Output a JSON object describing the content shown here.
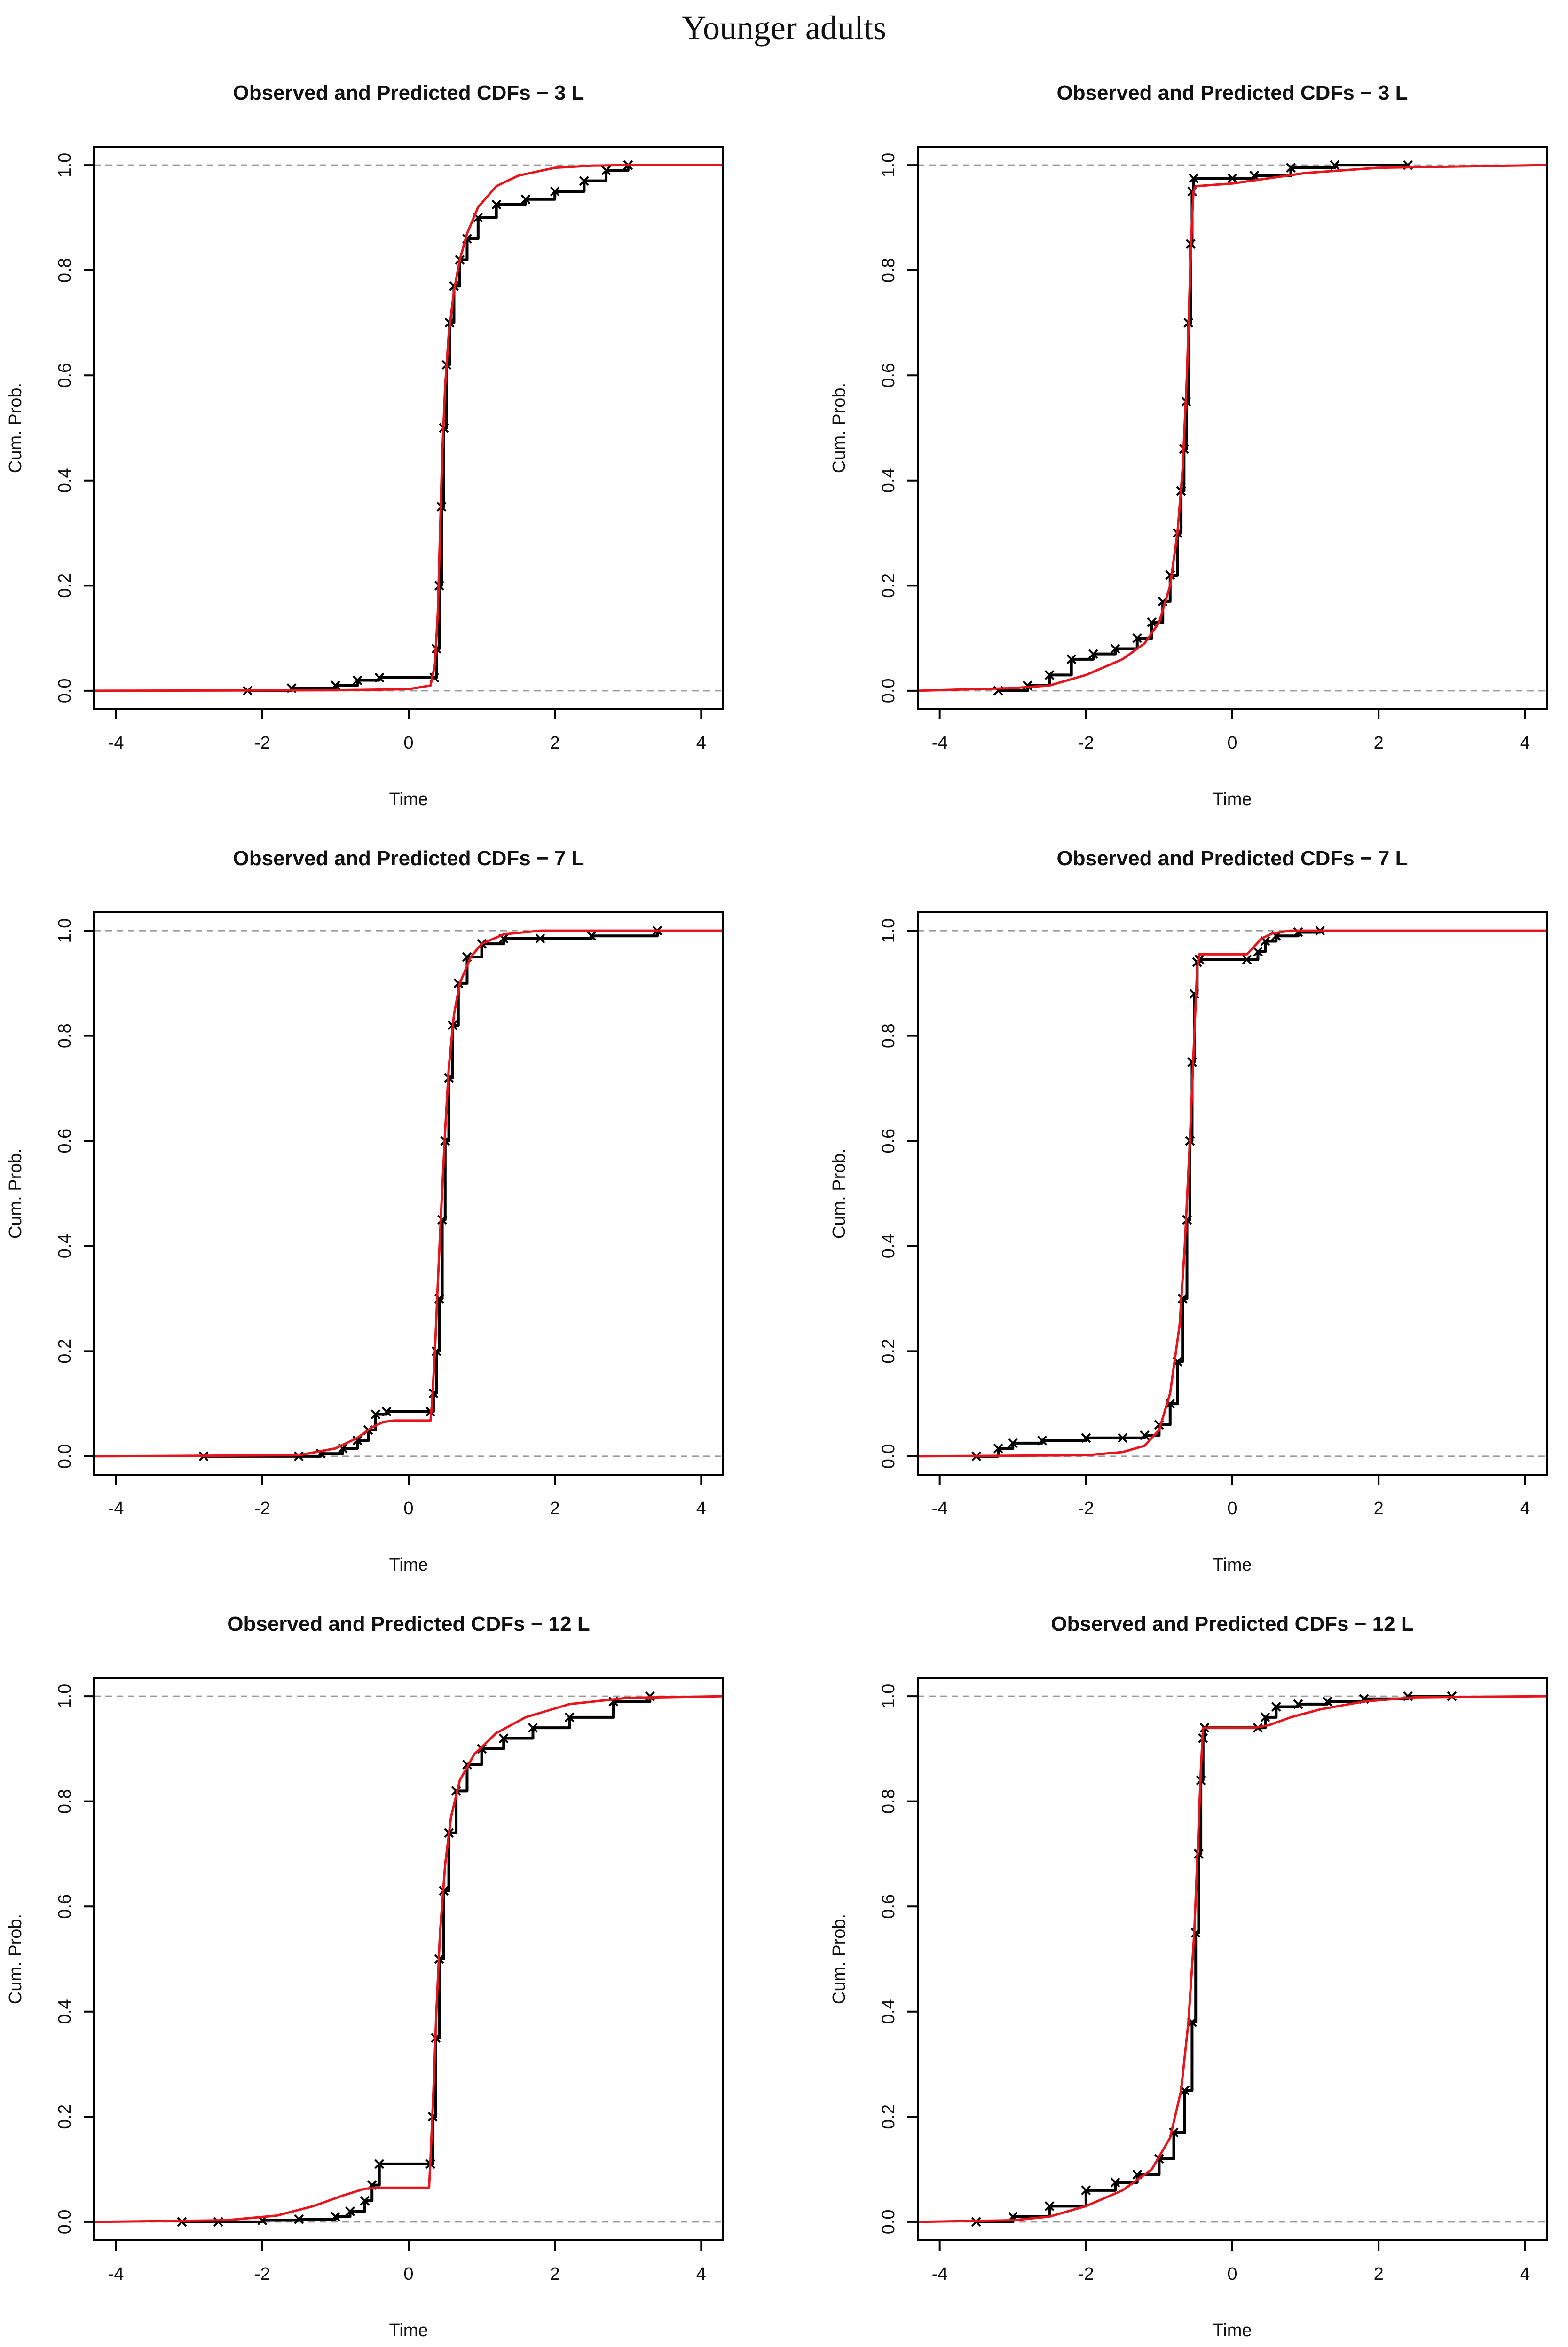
{
  "page_title": "Younger adults",
  "chart_data": [
    {
      "type": "line",
      "title": "Observed and Predicted CDFs − 3  L",
      "xlabel": "Time",
      "ylabel": "Cum. Prob.",
      "xlim": [
        -4.3,
        4.3
      ],
      "ylim": [
        -0.035,
        1.035
      ],
      "xticks": [
        -4,
        -2,
        0,
        2,
        4
      ],
      "yticks": [
        0.0,
        0.2,
        0.4,
        0.6,
        0.8,
        1.0
      ],
      "reference_lines": [
        0.0,
        1.0
      ],
      "series": [
        {
          "name": "Observed",
          "color": "#000000",
          "marker": "x",
          "x": [
            -2.2,
            -1.6,
            -1.0,
            -0.7,
            -0.4,
            0.35,
            0.38,
            0.42,
            0.45,
            0.48,
            0.52,
            0.56,
            0.62,
            0.7,
            0.8,
            0.95,
            1.2,
            1.6,
            2.0,
            2.4,
            2.7,
            3.0
          ],
          "y": [
            0.0,
            0.005,
            0.01,
            0.02,
            0.025,
            0.025,
            0.08,
            0.2,
            0.35,
            0.5,
            0.62,
            0.7,
            0.77,
            0.82,
            0.86,
            0.9,
            0.925,
            0.935,
            0.95,
            0.97,
            0.99,
            1.0
          ]
        },
        {
          "name": "Predicted",
          "color": "#e8141c",
          "x": [
            -4.3,
            -1.0,
            0.0,
            0.3,
            0.36,
            0.4,
            0.43,
            0.46,
            0.5,
            0.55,
            0.62,
            0.7,
            0.8,
            0.95,
            1.2,
            1.5,
            2.0,
            2.5,
            3.0,
            4.3
          ],
          "y": [
            0.0,
            0.001,
            0.003,
            0.01,
            0.05,
            0.15,
            0.3,
            0.45,
            0.58,
            0.68,
            0.76,
            0.82,
            0.87,
            0.92,
            0.96,
            0.98,
            0.995,
            0.999,
            1.0,
            1.0
          ]
        }
      ]
    },
    {
      "type": "line",
      "title": "Observed and Predicted CDFs − 3  L",
      "xlabel": "Time",
      "ylabel": "Cum. Prob.",
      "xlim": [
        -4.3,
        4.3
      ],
      "ylim": [
        -0.035,
        1.035
      ],
      "xticks": [
        -4,
        -2,
        0,
        2,
        4
      ],
      "yticks": [
        0.0,
        0.2,
        0.4,
        0.6,
        0.8,
        1.0
      ],
      "reference_lines": [
        0.0,
        1.0
      ],
      "series": [
        {
          "name": "Observed",
          "color": "#000000",
          "marker": "x",
          "x": [
            -3.2,
            -2.8,
            -2.5,
            -2.2,
            -1.9,
            -1.6,
            -1.3,
            -1.1,
            -0.95,
            -0.85,
            -0.75,
            -0.7,
            -0.66,
            -0.63,
            -0.6,
            -0.57,
            -0.55,
            -0.53,
            0.0,
            0.3,
            0.8,
            1.4,
            2.4
          ],
          "y": [
            0.0,
            0.01,
            0.03,
            0.06,
            0.07,
            0.08,
            0.1,
            0.13,
            0.17,
            0.22,
            0.3,
            0.38,
            0.46,
            0.55,
            0.7,
            0.85,
            0.95,
            0.975,
            0.975,
            0.98,
            0.995,
            1.0,
            1.0
          ]
        },
        {
          "name": "Predicted",
          "color": "#e8141c",
          "x": [
            -4.3,
            -3.0,
            -2.5,
            -2.0,
            -1.5,
            -1.2,
            -1.0,
            -0.85,
            -0.75,
            -0.68,
            -0.62,
            -0.58,
            -0.55,
            -0.53,
            -0.5,
            0.0,
            0.5,
            1.0,
            2.0,
            4.3
          ],
          "y": [
            0.0,
            0.005,
            0.01,
            0.03,
            0.06,
            0.09,
            0.13,
            0.2,
            0.3,
            0.42,
            0.6,
            0.78,
            0.9,
            0.95,
            0.96,
            0.965,
            0.975,
            0.985,
            0.995,
            1.0
          ]
        }
      ]
    },
    {
      "type": "line",
      "title": "Observed and Predicted CDFs − 7  L",
      "xlabel": "Time",
      "ylabel": "Cum. Prob.",
      "xlim": [
        -4.3,
        4.3
      ],
      "ylim": [
        -0.035,
        1.035
      ],
      "xticks": [
        -4,
        -2,
        0,
        2,
        4
      ],
      "yticks": [
        0.0,
        0.2,
        0.4,
        0.6,
        0.8,
        1.0
      ],
      "reference_lines": [
        0.0,
        1.0
      ],
      "series": [
        {
          "name": "Observed",
          "color": "#000000",
          "marker": "x",
          "x": [
            -2.8,
            -1.5,
            -1.2,
            -0.9,
            -0.7,
            -0.55,
            -0.45,
            -0.3,
            0.3,
            0.34,
            0.38,
            0.42,
            0.46,
            0.5,
            0.55,
            0.6,
            0.68,
            0.8,
            1.0,
            1.3,
            1.8,
            2.5,
            3.4
          ],
          "y": [
            0.0,
            0.0,
            0.005,
            0.015,
            0.03,
            0.05,
            0.08,
            0.085,
            0.085,
            0.12,
            0.2,
            0.3,
            0.45,
            0.6,
            0.72,
            0.82,
            0.9,
            0.95,
            0.975,
            0.985,
            0.985,
            0.99,
            1.0
          ]
        },
        {
          "name": "Predicted",
          "color": "#e8141c",
          "x": [
            -4.3,
            -1.5,
            -1.0,
            -0.7,
            -0.5,
            -0.35,
            -0.2,
            0.3,
            0.32,
            0.36,
            0.4,
            0.45,
            0.5,
            0.55,
            0.62,
            0.7,
            0.85,
            1.0,
            1.3,
            1.8,
            4.3
          ],
          "y": [
            0.0,
            0.002,
            0.015,
            0.035,
            0.055,
            0.065,
            0.068,
            0.068,
            0.1,
            0.2,
            0.33,
            0.48,
            0.62,
            0.74,
            0.84,
            0.9,
            0.95,
            0.975,
            0.993,
            1.0,
            1.0
          ]
        }
      ]
    },
    {
      "type": "line",
      "title": "Observed and Predicted CDFs − 7  L",
      "xlabel": "Time",
      "ylabel": "Cum. Prob.",
      "xlim": [
        -4.3,
        4.3
      ],
      "ylim": [
        -0.035,
        1.035
      ],
      "xticks": [
        -4,
        -2,
        0,
        2,
        4
      ],
      "yticks": [
        0.0,
        0.2,
        0.4,
        0.6,
        0.8,
        1.0
      ],
      "reference_lines": [
        0.0,
        1.0
      ],
      "series": [
        {
          "name": "Observed",
          "color": "#000000",
          "marker": "x",
          "x": [
            -3.5,
            -3.2,
            -3.0,
            -2.6,
            -2.0,
            -1.5,
            -1.2,
            -1.0,
            -0.85,
            -0.75,
            -0.68,
            -0.62,
            -0.58,
            -0.55,
            -0.52,
            -0.48,
            -0.45,
            0.2,
            0.35,
            0.45,
            0.6,
            0.9,
            1.2
          ],
          "y": [
            0.0,
            0.015,
            0.025,
            0.03,
            0.035,
            0.035,
            0.04,
            0.06,
            0.1,
            0.18,
            0.3,
            0.45,
            0.6,
            0.75,
            0.88,
            0.94,
            0.945,
            0.945,
            0.96,
            0.98,
            0.99,
            0.997,
            1.0
          ]
        },
        {
          "name": "Predicted",
          "color": "#e8141c",
          "x": [
            -4.3,
            -2.0,
            -1.5,
            -1.2,
            -1.0,
            -0.85,
            -0.72,
            -0.65,
            -0.58,
            -0.52,
            -0.48,
            -0.45,
            0.2,
            0.3,
            0.4,
            0.55,
            0.8,
            4.3
          ],
          "y": [
            0.0,
            0.002,
            0.008,
            0.02,
            0.05,
            0.12,
            0.25,
            0.4,
            0.6,
            0.8,
            0.93,
            0.955,
            0.955,
            0.97,
            0.985,
            0.995,
            1.0,
            1.0
          ]
        }
      ]
    },
    {
      "type": "line",
      "title": "Observed and Predicted CDFs − 12  L",
      "xlabel": "Time",
      "ylabel": "Cum. Prob.",
      "xlim": [
        -4.3,
        4.3
      ],
      "ylim": [
        -0.035,
        1.035
      ],
      "xticks": [
        -4,
        -2,
        0,
        2,
        4
      ],
      "yticks": [
        0.0,
        0.2,
        0.4,
        0.6,
        0.8,
        1.0
      ],
      "reference_lines": [
        0.0,
        1.0
      ],
      "series": [
        {
          "name": "Observed",
          "color": "#000000",
          "marker": "x",
          "x": [
            -3.1,
            -2.6,
            -2.0,
            -1.5,
            -1.0,
            -0.8,
            -0.6,
            -0.5,
            -0.4,
            0.3,
            0.33,
            0.37,
            0.42,
            0.48,
            0.55,
            0.65,
            0.8,
            1.0,
            1.3,
            1.7,
            2.2,
            2.8,
            3.3
          ],
          "y": [
            0.0,
            0.0,
            0.003,
            0.005,
            0.01,
            0.02,
            0.04,
            0.07,
            0.11,
            0.11,
            0.2,
            0.35,
            0.5,
            0.63,
            0.74,
            0.82,
            0.87,
            0.9,
            0.92,
            0.94,
            0.96,
            0.99,
            1.0
          ]
        },
        {
          "name": "Predicted",
          "color": "#e8141c",
          "x": [
            -4.3,
            -2.5,
            -1.8,
            -1.3,
            -0.9,
            -0.6,
            -0.4,
            0.28,
            0.3,
            0.34,
            0.38,
            0.43,
            0.5,
            0.58,
            0.7,
            0.9,
            1.2,
            1.6,
            2.2,
            3.0,
            4.3
          ],
          "y": [
            0.0,
            0.003,
            0.012,
            0.03,
            0.05,
            0.063,
            0.065,
            0.065,
            0.12,
            0.25,
            0.4,
            0.55,
            0.68,
            0.77,
            0.84,
            0.89,
            0.93,
            0.96,
            0.985,
            0.997,
            1.0
          ]
        }
      ]
    },
    {
      "type": "line",
      "title": "Observed and Predicted CDFs − 12  L",
      "xlabel": "Time",
      "ylabel": "Cum. Prob.",
      "xlim": [
        -4.3,
        4.3
      ],
      "ylim": [
        -0.035,
        1.035
      ],
      "xticks": [
        -4,
        -2,
        0,
        2,
        4
      ],
      "yticks": [
        0.0,
        0.2,
        0.4,
        0.6,
        0.8,
        1.0
      ],
      "reference_lines": [
        0.0,
        1.0
      ],
      "series": [
        {
          "name": "Observed",
          "color": "#000000",
          "marker": "x",
          "x": [
            -3.5,
            -3.0,
            -2.5,
            -2.0,
            -1.6,
            -1.3,
            -1.0,
            -0.8,
            -0.65,
            -0.55,
            -0.5,
            -0.46,
            -0.43,
            -0.4,
            -0.38,
            0.35,
            0.45,
            0.6,
            0.9,
            1.3,
            1.8,
            2.4,
            3.0
          ],
          "y": [
            0.0,
            0.01,
            0.03,
            0.06,
            0.075,
            0.09,
            0.12,
            0.17,
            0.25,
            0.38,
            0.55,
            0.7,
            0.84,
            0.92,
            0.94,
            0.94,
            0.96,
            0.98,
            0.985,
            0.99,
            0.995,
            1.0,
            1.0
          ]
        },
        {
          "name": "Predicted",
          "color": "#e8141c",
          "x": [
            -4.3,
            -3.0,
            -2.5,
            -2.0,
            -1.5,
            -1.1,
            -0.85,
            -0.7,
            -0.6,
            -0.52,
            -0.47,
            -0.43,
            -0.4,
            0.3,
            0.5,
            0.8,
            1.2,
            1.8,
            2.5,
            4.3
          ],
          "y": [
            0.0,
            0.003,
            0.01,
            0.03,
            0.06,
            0.1,
            0.16,
            0.25,
            0.38,
            0.55,
            0.72,
            0.86,
            0.94,
            0.94,
            0.945,
            0.96,
            0.975,
            0.99,
            0.998,
            1.0
          ]
        }
      ]
    }
  ]
}
